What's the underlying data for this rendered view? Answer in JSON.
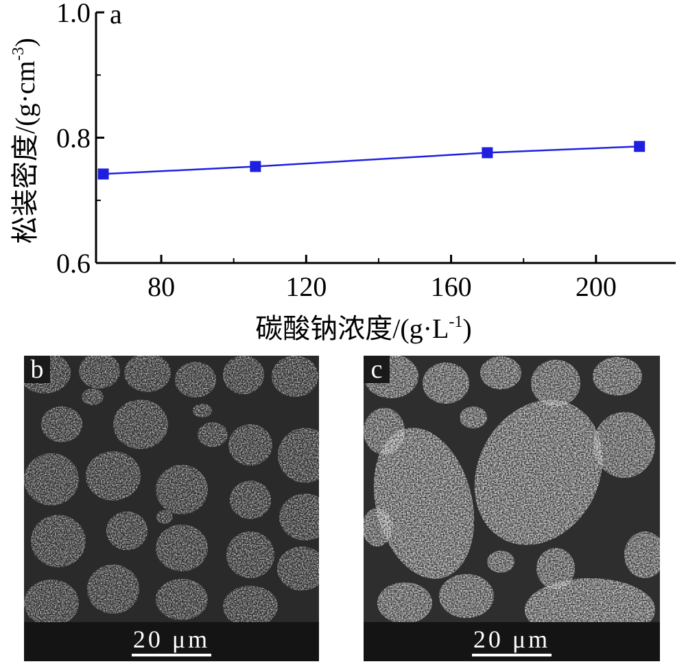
{
  "chart_data": {
    "type": "line",
    "panel_label": "a",
    "xlabel": "碳酸钠浓度/(g·L",
    "xlabel_sup": "-1",
    "xlabel_end": ")",
    "ylabel": "松装密度/(g·cm",
    "ylabel_sup": "-3",
    "ylabel_end": ")",
    "xlim": [
      62,
      222
    ],
    "ylim": [
      0.6,
      1.0
    ],
    "x_ticks": [
      80,
      120,
      160,
      200
    ],
    "x_tick_labels": [
      "80",
      "120",
      "160",
      "200"
    ],
    "y_ticks": [
      0.6,
      0.8,
      1.0
    ],
    "y_tick_labels": [
      "0.6",
      "0.8",
      "1.0"
    ],
    "series": [
      {
        "color": "#1f1fe0",
        "marker": "square",
        "x": [
          64,
          106,
          170,
          212
        ],
        "y": [
          0.742,
          0.754,
          0.776,
          0.786
        ]
      }
    ]
  },
  "panels": [
    {
      "label": "b",
      "scale_text": "20 μm"
    },
    {
      "label": "c",
      "scale_text": "20 μm"
    }
  ]
}
